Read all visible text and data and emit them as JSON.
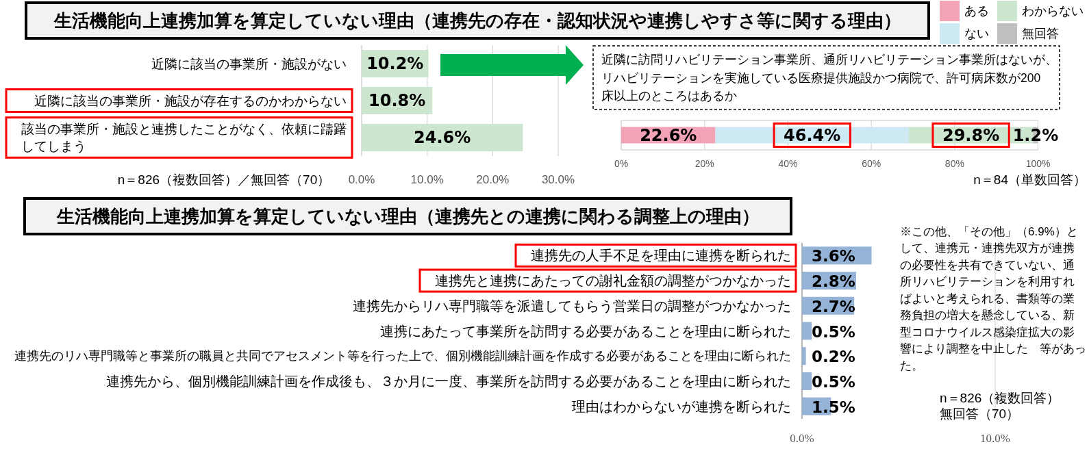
{
  "chart_data": [
    {
      "type": "bar",
      "orientation": "horizontal",
      "title": "生活機能向上連携加算を算定していない理由（連携先の存在・認知状況や連携しやすさ等に関する理由）",
      "categories": [
        "近隣に該当の事業所・施設がない",
        "近隣に該当の事業所・施設が存在するのかわからない",
        "該当の事業所・施設と連携したことがなく、依頼に躊躇してしまう"
      ],
      "values": [
        10.2,
        10.8,
        24.6
      ],
      "color": "#cde6cf",
      "value_labels": [
        "10.2%",
        "10.8%",
        "24.6%"
      ],
      "xlim": [
        0,
        30
      ],
      "xticks": [
        {
          "value": 0,
          "label": "0.0%"
        },
        {
          "value": 10,
          "label": "10.0%"
        },
        {
          "value": 20,
          "label": "20.0%"
        },
        {
          "value": 30,
          "label": "30.0%"
        }
      ],
      "grid": "x",
      "annotations": [
        "n＝826（複数回答）／無回答（70）"
      ]
    },
    {
      "type": "bar",
      "orientation": "horizontal",
      "stacked": true,
      "title": "近隣に訪問リハビリテーション事業所、通所リハビリテーション事業所はないが、リハビリテーションを実施している医療提供施設かつ病院で、許可病床数が200床以上のところはあるか",
      "categories": [
        null
      ],
      "series": [
        {
          "name": "ある",
          "color": "#f2a3b5",
          "values": [
            22.6
          ],
          "value_labels": [
            "22.6%"
          ]
        },
        {
          "name": "ない",
          "color": "#cdeaf4",
          "values": [
            46.4
          ],
          "value_labels": [
            "46.4%"
          ]
        },
        {
          "name": "わからない",
          "color": "#cde6cf",
          "values": [
            29.8
          ],
          "value_labels": [
            "29.8%"
          ]
        },
        {
          "name": "無回答",
          "color": "#bfbfbf",
          "values": [
            1.2
          ],
          "value_labels": [
            "1.2%"
          ]
        }
      ],
      "xlim": [
        0,
        100
      ],
      "xticks": [
        {
          "value": 0,
          "label": "0%"
        },
        {
          "value": 20,
          "label": "20%"
        },
        {
          "value": 40,
          "label": "40%"
        },
        {
          "value": 60,
          "label": "60%"
        },
        {
          "value": 80,
          "label": "80%"
        },
        {
          "value": 100,
          "label": "100%"
        }
      ],
      "grid": "x",
      "legend": "top right",
      "annotations": [
        "n＝84（単数回答）"
      ]
    },
    {
      "type": "bar",
      "orientation": "horizontal",
      "title": "生活機能向上連携加算を算定していない理由（連携先との連携に関わる調整上の理由）",
      "categories": [
        "連携先の人手不足を理由に連携を断られた",
        "連携先と連携にあたっての謝礼金額の調整がつかなかった",
        "連携先からリハ専門職等を派遣してもらう営業日の調整がつかなかった",
        "連携にあたって事業所を訪問する必要があることを理由に断られた",
        "連携先のリハ専門職等と事業所の職員と共同でアセスメント等を行った上で、個別機能訓練計画を作成する必要があることを理由に断られた",
        "連携先から、個別機能訓練計画を作成後も、３か月に一度、事業所を訪問する必要があることを理由に断られた",
        "理由はわからないが連携を断られた"
      ],
      "values": [
        3.6,
        2.8,
        2.7,
        0.5,
        0.2,
        0.5,
        1.5
      ],
      "color": "#95b3d7",
      "value_labels": [
        "3.6%",
        "2.8%",
        "2.7%",
        "0.5%",
        "0.2%",
        "0.5%",
        "1.5%"
      ],
      "xlim": [
        0,
        10
      ],
      "xticks": [
        {
          "value": 0,
          "label": "0.0%"
        },
        {
          "value": 10,
          "label": "10.0%"
        }
      ],
      "grid": "x",
      "annotations": [
        "※この他、「その他」（6.9%）として、連携元・連携先双方が連携の必要性を共有できていない、通所リハビリテーションを利用すればよいと考えられる、書類等の業務負担の増大を懸念している、新型コロナウイルス感染症拡大の影響により調整を中止した　等があった。",
        "n＝826（複数回答）",
        "無回答（70）"
      ]
    }
  ]
}
